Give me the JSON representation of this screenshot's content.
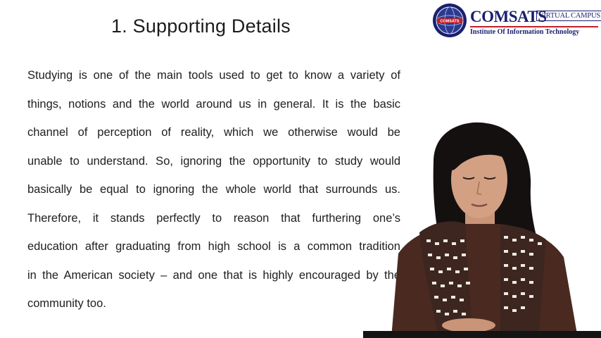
{
  "slide": {
    "title": "1. Supporting Details",
    "body_lines": [
      "Studying is one of the main tools used to get to know a variety of",
      "things, notions and the world around us in general. It is the basic",
      "channel of perception of reality, which we otherwise would be",
      "unable to understand. So, ignoring the opportunity to study would",
      "basically be equal to ignoring the whole world that surrounds us.",
      "Therefore, it stands perfectly to reason that furthering one’s",
      "education after graduating from high school is a common tradition",
      "in the American society – and one that is highly encouraged by the",
      "community too."
    ]
  },
  "logo": {
    "name": "COMSATS",
    "campus": "VIRTUAL CAMPUS",
    "tagline": "Institute Of Information Technology",
    "seal_text": "COMSATS"
  },
  "colors": {
    "logo_blue": "#1a1f6e",
    "logo_red": "#c31f27",
    "text": "#202020",
    "background": "#ffffff"
  },
  "icons": {
    "seal": "comsats-seal-icon",
    "presenter": "presenter-video-overlay"
  }
}
